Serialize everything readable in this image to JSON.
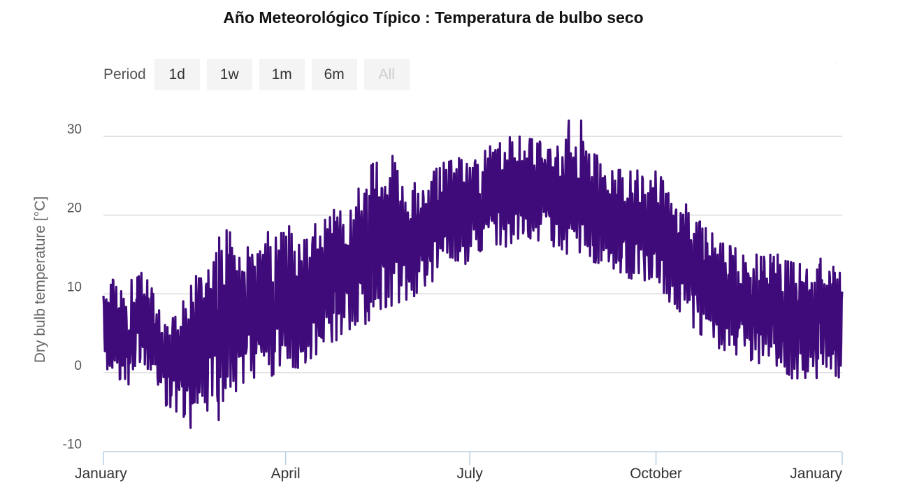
{
  "chart_data": {
    "type": "line",
    "title": "Año Meteorológico Típico : Temperatura de bulbo seco",
    "ylabel": "Dry bulb temperature [°C]",
    "xlabel": "",
    "ylim": [
      -10,
      35
    ],
    "yticks": [
      "30",
      "20",
      "10",
      "0",
      "-10"
    ],
    "ytick_values": [
      30,
      20,
      10,
      0,
      -10
    ],
    "xticks": [
      "January",
      "April",
      "July",
      "October",
      "January"
    ],
    "xtick_days": [
      0,
      90,
      181,
      273,
      365
    ],
    "x_unit": "day of year",
    "grid": true,
    "legend": "none",
    "series": [
      {
        "color": "#3f0a7a",
        "envelope_x_day": [
          0,
          10,
          20,
          30,
          40,
          50,
          60,
          70,
          80,
          90,
          100,
          110,
          120,
          130,
          140,
          150,
          160,
          170,
          181,
          190,
          200,
          210,
          220,
          230,
          240,
          250,
          260,
          273,
          283,
          293,
          303,
          313,
          323,
          333,
          343,
          353,
          365
        ],
        "envelope_low": [
          -1,
          -2,
          -1,
          -4,
          -6,
          -5,
          -4,
          -1,
          -1,
          0,
          1,
          3,
          5,
          6,
          8,
          9,
          11,
          13,
          14,
          16,
          16,
          17,
          16,
          15,
          14,
          13,
          12,
          11,
          8,
          5,
          3,
          2,
          1,
          0,
          -1,
          -1,
          -1
        ],
        "envelope_high": [
          13,
          11,
          13,
          7,
          10,
          14,
          19,
          16,
          18,
          19,
          17,
          21,
          21,
          26,
          29,
          24,
          25,
          27,
          28,
          29,
          30,
          30,
          29,
          31,
          29,
          26,
          26,
          26,
          23,
          20,
          17,
          16,
          15,
          15,
          14,
          15,
          13
        ],
        "extremes": [
          {
            "x_day": 43,
            "y": -7
          },
          {
            "x_day": 57,
            "y": -6
          },
          {
            "x_day": 230,
            "y": 32
          },
          {
            "x_day": 236,
            "y": 32
          }
        ]
      }
    ]
  },
  "range_selector": {
    "label": "Period",
    "buttons": [
      "1d",
      "1w",
      "1m",
      "6m",
      "All"
    ],
    "selected": "All"
  }
}
